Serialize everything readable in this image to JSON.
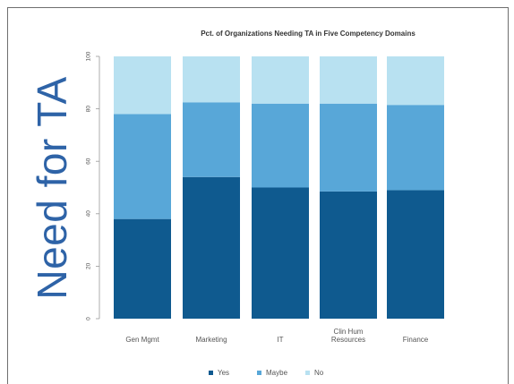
{
  "side_title": "Need for TA",
  "colors": {
    "yes": "#0f5a8f",
    "maybe": "#58a7d8",
    "no": "#b8e1f1",
    "side_title": "#2e63a7"
  },
  "chart_data": {
    "type": "bar",
    "stacked": true,
    "title": "Pct. of Organizations Needing TA in Five Competency Domains",
    "categories": [
      "Gen Mgmt",
      "Marketing",
      "IT",
      "Clin Hum Resources",
      "Finance"
    ],
    "category_lines": [
      [
        "Gen Mgmt"
      ],
      [
        "Marketing"
      ],
      [
        "IT"
      ],
      [
        "Clin Hum",
        "Resources"
      ],
      [
        "Finance"
      ]
    ],
    "series": [
      {
        "name": "Yes",
        "values": [
          38,
          54,
          50,
          48.5,
          49
        ]
      },
      {
        "name": "Maybe",
        "values": [
          40,
          28.5,
          32,
          33.5,
          32.5
        ]
      },
      {
        "name": "No",
        "values": [
          22,
          17.5,
          18,
          18,
          18.5
        ]
      }
    ],
    "ylim": [
      0,
      100
    ],
    "yticks": [
      "0",
      "20",
      "40",
      "60",
      "80",
      "100"
    ],
    "grid": false,
    "legend": "bottom"
  }
}
